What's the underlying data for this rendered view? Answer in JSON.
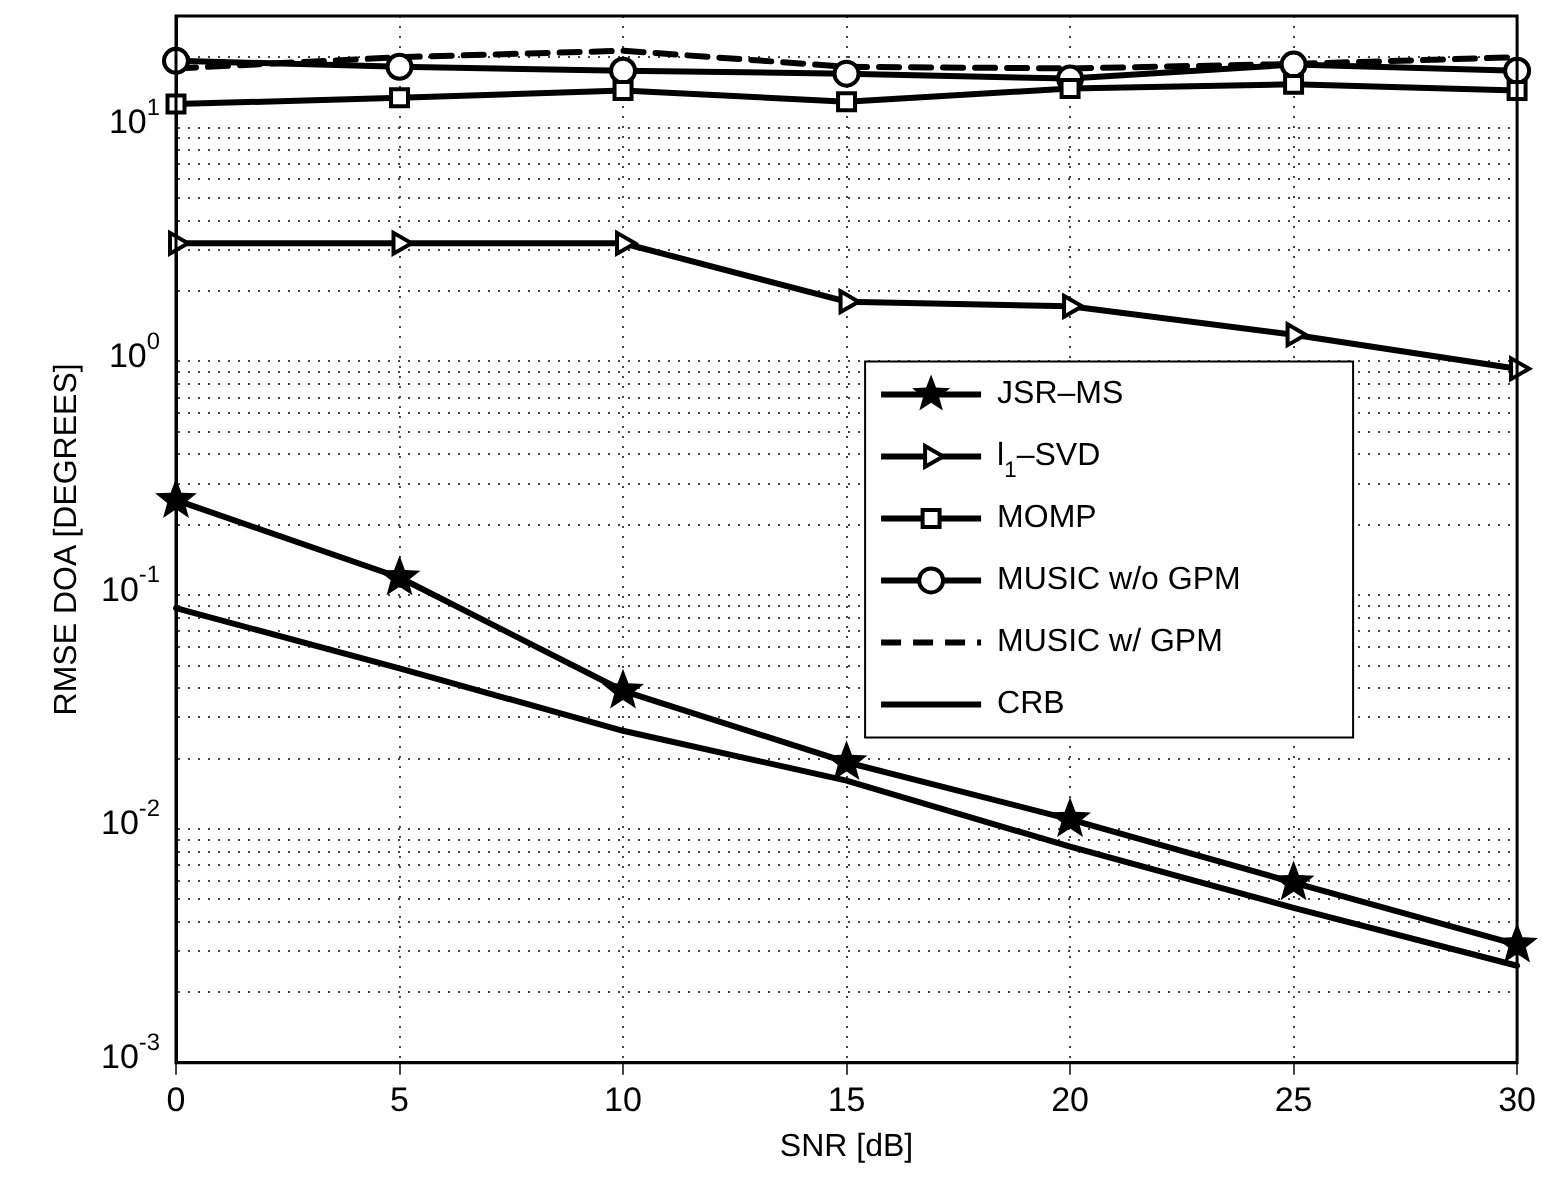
{
  "chart_data": {
    "type": "line",
    "xlabel": "SNR [dB]",
    "ylabel": "RMSE DOA [DEGREES]",
    "x": [
      0,
      5,
      10,
      15,
      20,
      25,
      30
    ],
    "series": [
      {
        "name": "JSR–MS",
        "color": "#000000",
        "marker": "star",
        "line_style": "solid",
        "values": [
          0.255,
          0.119,
          0.039,
          0.0193,
          0.011,
          0.0059,
          0.0032
        ]
      },
      {
        "name": "l$_{1}$–SVD",
        "color": "#000000",
        "marker": "triangle",
        "line_style": "solid",
        "values": [
          3.2,
          3.2,
          3.2,
          1.8,
          1.72,
          1.3,
          0.93
        ]
      },
      {
        "name": "MOMP",
        "color": "#000000",
        "marker": "square",
        "line_style": "solid",
        "values": [
          12.6,
          13.4,
          14.4,
          12.9,
          14.7,
          15.3,
          14.4
        ]
      },
      {
        "name": "MUSIC w/o GPM",
        "color": "#000000",
        "marker": "circle",
        "line_style": "solid",
        "values": [
          19.3,
          18.2,
          17.5,
          17.0,
          16.2,
          18.6,
          17.5
        ]
      },
      {
        "name": "MUSIC w/ GPM",
        "color": "#000000",
        "marker": "none",
        "line_style": "dashed",
        "values": [
          17.9,
          20,
          21.3,
          18.2,
          17.9,
          18.7,
          20
        ]
      },
      {
        "name": "CRB",
        "color": "#000000",
        "marker": "none",
        "line_style": "solid",
        "values": [
          0.088,
          0.0486,
          0.0263,
          0.0161,
          0.0084,
          0.0046,
          0.0026
        ]
      }
    ],
    "log": "y",
    "grid": true,
    "legend": "right",
    "xlim": [
      0,
      30
    ],
    "xticks": [
      0,
      5,
      10,
      15,
      20,
      25,
      30
    ],
    "ylim": [
      0.001,
      30
    ],
    "yticks": [
      {
        "value": 0.001,
        "label": "10$^{-3}$"
      },
      {
        "value": 0.002,
        "label": null
      },
      {
        "value": 0.003,
        "label": null
      },
      {
        "value": 0.004,
        "label": null
      },
      {
        "value": 0.005,
        "label": null
      },
      {
        "value": 0.006,
        "label": null
      },
      {
        "value": 0.007,
        "label": null
      },
      {
        "value": 0.008,
        "label": null
      },
      {
        "value": 0.009,
        "label": null
      },
      {
        "value": 0.01,
        "label": "10$^{-2}$"
      },
      {
        "value": 0.02,
        "label": null
      },
      {
        "value": 0.03,
        "label": null
      },
      {
        "value": 0.04,
        "label": null
      },
      {
        "value": 0.05,
        "label": null
      },
      {
        "value": 0.06,
        "label": null
      },
      {
        "value": 0.07,
        "label": null
      },
      {
        "value": 0.08,
        "label": null
      },
      {
        "value": 0.09,
        "label": null
      },
      {
        "value": 0.1,
        "label": "10$^{-1}$"
      },
      {
        "value": 0.2,
        "label": null
      },
      {
        "value": 0.3,
        "label": null
      },
      {
        "value": 0.4,
        "label": null
      },
      {
        "value": 0.5,
        "label": null
      },
      {
        "value": 0.6,
        "label": null
      },
      {
        "value": 0.7,
        "label": null
      },
      {
        "value": 0.8,
        "label": null
      },
      {
        "value": 0.9,
        "label": null
      },
      {
        "value": 1,
        "label": "10$^{0}$"
      },
      {
        "value": 2,
        "label": null
      },
      {
        "value": 3,
        "label": null
      },
      {
        "value": 4,
        "label": null
      },
      {
        "value": 5,
        "label": null
      },
      {
        "value": 6,
        "label": null
      },
      {
        "value": 7,
        "label": null
      },
      {
        "value": 8,
        "label": null
      },
      {
        "value": 9,
        "label": null
      },
      {
        "value": 10,
        "label": "10$^{1}$"
      },
      {
        "value": 20,
        "label": null
      },
      {
        "value": 30,
        "label": null
      }
    ]
  }
}
